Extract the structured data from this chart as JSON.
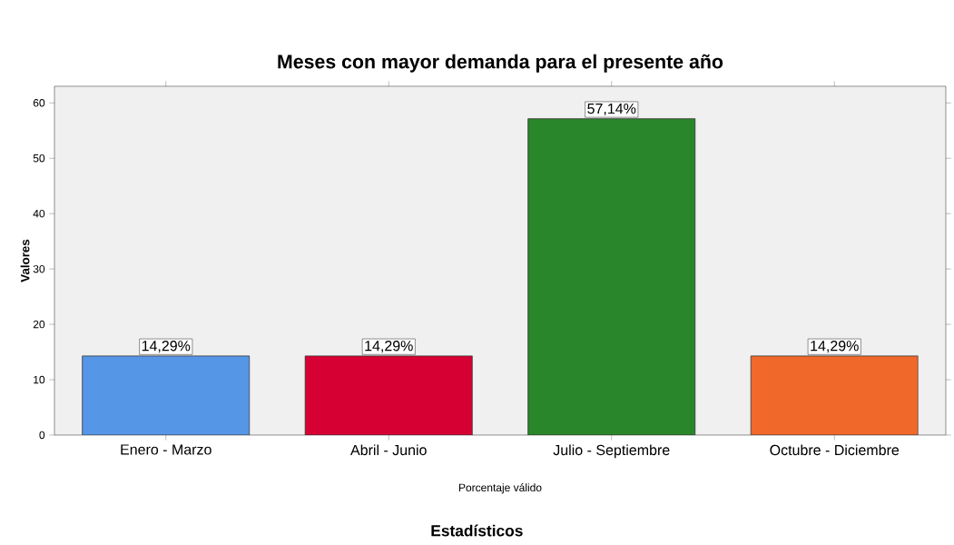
{
  "chart_data": {
    "type": "bar",
    "title": "Meses con mayor demanda para el presente año",
    "categories": [
      "Enero - Marzo",
      "Abril - Junio",
      "Julio - Septiembre",
      "Octubre - Diciembre"
    ],
    "values": [
      14.29,
      14.29,
      57.14,
      14.29
    ],
    "colors": [
      "#5596e6",
      "#d60032",
      "#2a862a",
      "#f0682a"
    ],
    "value_labels": [
      "14,29%",
      "14,29%",
      "57,14%",
      "14,29%"
    ],
    "ylabel": "Valores",
    "xlabel": "Porcentaje válido",
    "annotations": [
      "Estadísticos"
    ],
    "ylim": [
      0,
      63
    ],
    "yticks": [
      0,
      10,
      20,
      30,
      40,
      50,
      60
    ]
  }
}
